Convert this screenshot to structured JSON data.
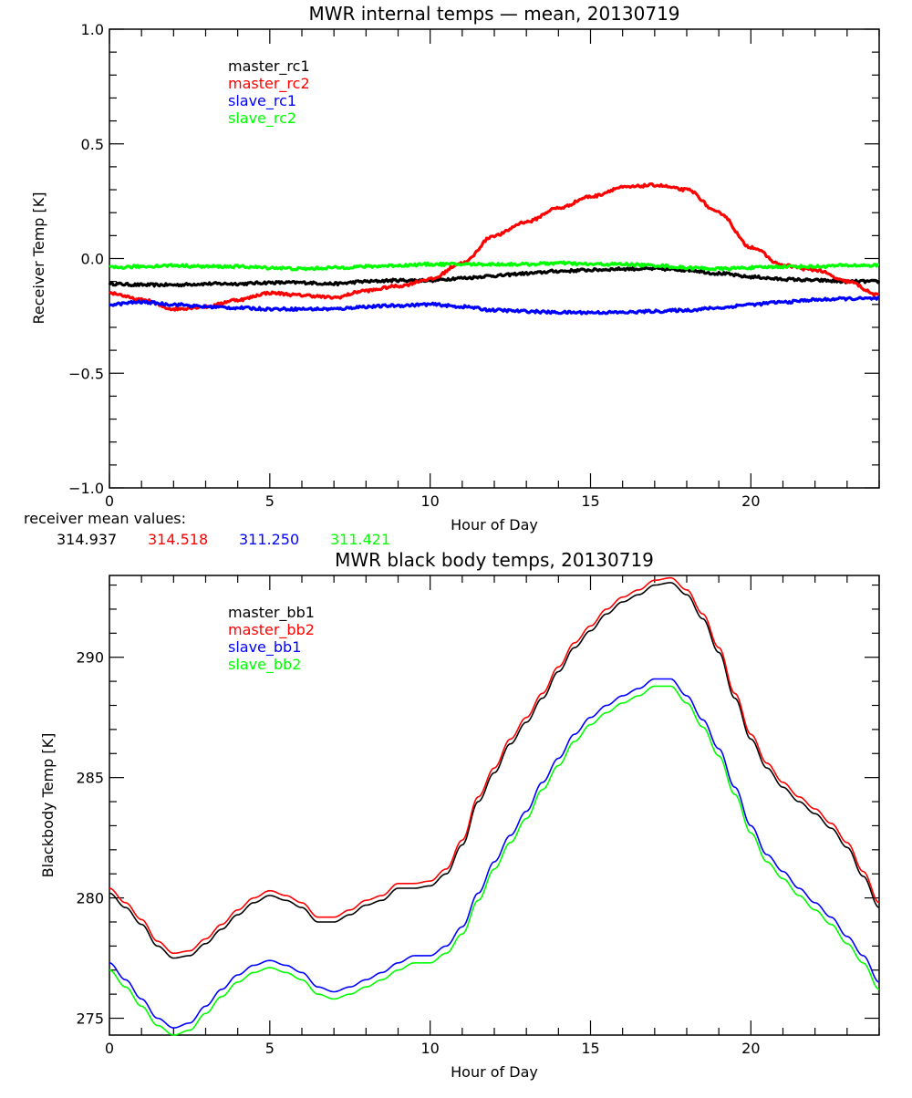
{
  "chart_data": [
    {
      "type": "line",
      "title": "MWR internal temps — mean, 20130719",
      "xlabel": "Hour of Day",
      "ylabel": "Receiver Temp [K]",
      "xlim": [
        0,
        24
      ],
      "ylim": [
        -1.0,
        1.0
      ],
      "xticks": [
        0,
        5,
        10,
        15,
        20
      ],
      "xtick_labels": [
        "0",
        "5",
        "10",
        "15",
        "20"
      ],
      "yticks": [
        -1.0,
        -0.5,
        0.0,
        0.5,
        1.0
      ],
      "ytick_labels": [
        "−1.0",
        "−0.5",
        "0.0",
        "0.5",
        "1.0"
      ],
      "grid": false,
      "legend_position": "top-left-inside",
      "x": [
        0,
        1,
        2,
        3,
        4,
        5,
        6,
        7,
        8,
        9,
        10,
        11,
        12,
        13,
        14,
        15,
        16,
        17,
        18,
        19,
        20,
        21,
        22,
        23,
        24
      ],
      "series": [
        {
          "name": "master_rc1",
          "color": "#000000",
          "values": [
            -0.11,
            -0.115,
            -0.115,
            -0.11,
            -0.11,
            -0.105,
            -0.105,
            -0.11,
            -0.1,
            -0.095,
            -0.095,
            -0.085,
            -0.075,
            -0.065,
            -0.055,
            -0.05,
            -0.045,
            -0.045,
            -0.05,
            -0.065,
            -0.08,
            -0.09,
            -0.095,
            -0.1,
            -0.1
          ]
        },
        {
          "name": "master_rc2",
          "color": "#ff0000",
          "values": [
            -0.15,
            -0.18,
            -0.22,
            -0.21,
            -0.18,
            -0.15,
            -0.16,
            -0.17,
            -0.14,
            -0.12,
            -0.09,
            -0.02,
            0.1,
            0.16,
            0.22,
            0.27,
            0.31,
            0.32,
            0.3,
            0.2,
            0.05,
            -0.03,
            -0.05,
            -0.1,
            -0.16
          ]
        },
        {
          "name": "slave_rc1",
          "color": "#0000ff",
          "values": [
            -0.2,
            -0.19,
            -0.2,
            -0.21,
            -0.215,
            -0.22,
            -0.22,
            -0.22,
            -0.21,
            -0.205,
            -0.2,
            -0.21,
            -0.225,
            -0.23,
            -0.235,
            -0.235,
            -0.235,
            -0.23,
            -0.225,
            -0.215,
            -0.2,
            -0.19,
            -0.18,
            -0.175,
            -0.175
          ]
        },
        {
          "name": "slave_rc2",
          "color": "#00ff00",
          "values": [
            -0.04,
            -0.035,
            -0.03,
            -0.035,
            -0.035,
            -0.04,
            -0.045,
            -0.04,
            -0.035,
            -0.03,
            -0.025,
            -0.025,
            -0.025,
            -0.025,
            -0.02,
            -0.025,
            -0.025,
            -0.03,
            -0.04,
            -0.045,
            -0.04,
            -0.035,
            -0.035,
            -0.03,
            -0.03
          ]
        }
      ],
      "annotation": {
        "label": "receiver mean values:",
        "values": [
          {
            "text": "314.937",
            "color": "#000000"
          },
          {
            "text": "314.518",
            "color": "#ff0000"
          },
          {
            "text": "311.250",
            "color": "#0000ff"
          },
          {
            "text": "311.421",
            "color": "#00ff00"
          }
        ]
      }
    },
    {
      "type": "line",
      "title": "MWR black body temps, 20130719",
      "xlabel": "Hour of Day",
      "ylabel": "Blackbody Temp [K]",
      "xlim": [
        0,
        24
      ],
      "ylim": [
        274.3,
        293.4
      ],
      "xticks": [
        0,
        5,
        10,
        15,
        20
      ],
      "xtick_labels": [
        "0",
        "5",
        "10",
        "15",
        "20"
      ],
      "yticks": [
        275,
        280,
        285,
        290
      ],
      "ytick_labels": [
        "275",
        "280",
        "285",
        "290"
      ],
      "grid": false,
      "legend_position": "top-left-inside",
      "x": [
        0,
        0.5,
        1,
        1.5,
        2,
        2.5,
        3,
        3.5,
        4,
        4.5,
        5,
        5.5,
        6,
        6.5,
        7,
        7.5,
        8,
        8.5,
        9,
        9.5,
        10,
        10.5,
        11,
        11.5,
        12,
        12.5,
        13,
        13.5,
        14,
        14.5,
        15,
        15.5,
        16,
        16.5,
        17,
        17.5,
        18,
        18.5,
        19,
        19.5,
        20,
        20.5,
        21,
        21.5,
        22,
        22.5,
        23,
        23.5,
        24
      ],
      "series": [
        {
          "name": "master_bb1",
          "color": "#000000",
          "values": [
            280.2,
            279.6,
            278.9,
            278.0,
            277.5,
            277.6,
            278.1,
            278.7,
            279.3,
            279.8,
            280.1,
            279.9,
            279.6,
            279.0,
            279.0,
            279.3,
            279.7,
            279.9,
            280.4,
            280.4,
            280.5,
            281.0,
            282.2,
            284.0,
            285.2,
            286.4,
            287.3,
            288.3,
            289.4,
            290.4,
            291.1,
            291.8,
            292.3,
            292.6,
            293.0,
            293.1,
            292.6,
            291.6,
            290.2,
            288.3,
            286.6,
            285.4,
            284.6,
            284.0,
            283.5,
            282.9,
            282.1,
            280.9,
            279.6
          ]
        },
        {
          "name": "master_bb2",
          "color": "#ff0000",
          "values": [
            280.4,
            279.8,
            279.1,
            278.2,
            277.7,
            277.8,
            278.3,
            278.9,
            279.5,
            280.0,
            280.3,
            280.1,
            279.8,
            279.2,
            279.2,
            279.5,
            279.9,
            280.1,
            280.6,
            280.6,
            280.7,
            281.2,
            282.4,
            284.2,
            285.4,
            286.6,
            287.5,
            288.5,
            289.6,
            290.6,
            291.3,
            292.0,
            292.5,
            292.8,
            293.2,
            293.3,
            292.8,
            291.8,
            290.4,
            288.5,
            286.8,
            285.6,
            284.8,
            284.2,
            283.7,
            283.1,
            282.3,
            281.1,
            279.8
          ]
        },
        {
          "name": "slave_bb1",
          "color": "#0000ff",
          "values": [
            277.3,
            276.6,
            275.8,
            275.0,
            274.6,
            274.8,
            275.5,
            276.2,
            276.8,
            277.2,
            277.4,
            277.2,
            276.9,
            276.3,
            276.1,
            276.3,
            276.6,
            276.9,
            277.3,
            277.6,
            277.6,
            278.0,
            278.8,
            280.2,
            281.5,
            282.6,
            283.6,
            284.8,
            285.8,
            286.8,
            287.5,
            288.0,
            288.4,
            288.7,
            289.1,
            289.1,
            288.4,
            287.4,
            286.2,
            284.6,
            283.0,
            281.8,
            281.1,
            280.4,
            279.8,
            279.2,
            278.4,
            277.6,
            276.5
          ]
        },
        {
          "name": "slave_bb2",
          "color": "#00ff00",
          "values": [
            277.0,
            276.3,
            275.5,
            274.7,
            274.3,
            274.5,
            275.2,
            275.9,
            276.5,
            276.9,
            277.1,
            276.9,
            276.6,
            276.0,
            275.8,
            276.0,
            276.3,
            276.6,
            277.0,
            277.3,
            277.3,
            277.7,
            278.5,
            279.9,
            281.2,
            282.3,
            283.3,
            284.5,
            285.5,
            286.5,
            287.2,
            287.7,
            288.1,
            288.4,
            288.8,
            288.8,
            288.1,
            287.1,
            285.9,
            284.3,
            282.7,
            281.5,
            280.8,
            280.1,
            279.5,
            278.9,
            278.1,
            277.3,
            276.2
          ]
        }
      ]
    }
  ]
}
